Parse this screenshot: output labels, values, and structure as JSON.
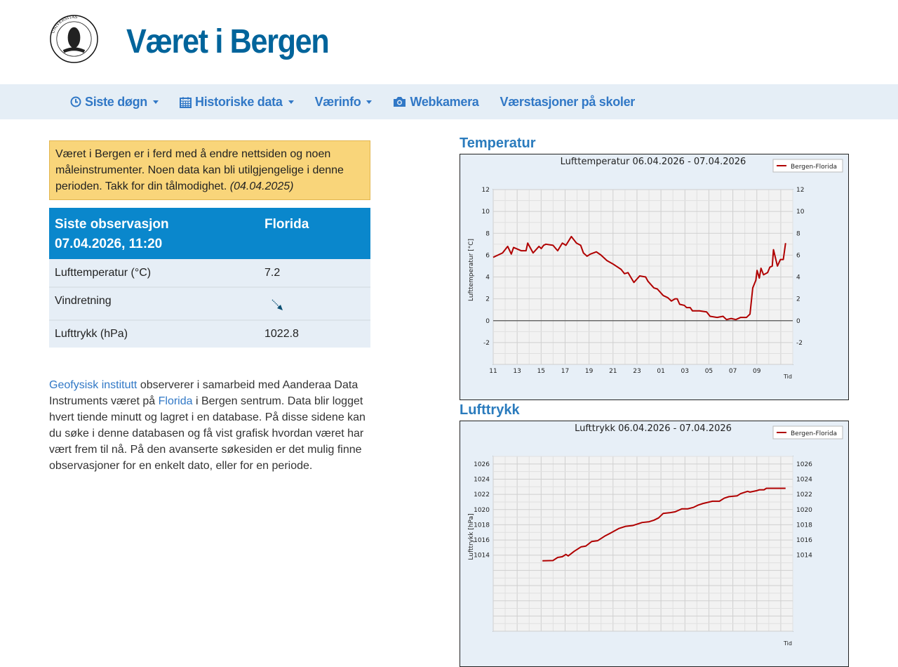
{
  "header": {
    "title": "Været i Bergen",
    "logo_text": "UNIVERSITAS BERGENSIS"
  },
  "nav": [
    {
      "label": "Siste døgn",
      "icon": "clock-icon",
      "dropdown": true
    },
    {
      "label": "Historiske data",
      "icon": "calendar-icon",
      "dropdown": true
    },
    {
      "label": "Værinfo",
      "dropdown": true
    },
    {
      "label": "Webkamera",
      "icon": "camera-icon"
    },
    {
      "label": "Værstasjoner på skoler"
    }
  ],
  "notice": {
    "text": "Været i Bergen er i ferd med å endre nettsiden og noen måleinstrumenter. Noen data kan bli utilgjengelige i denne perioden. Takk for din tålmodighet.",
    "date": "(04.04.2025)"
  },
  "observation": {
    "header_line1": "Siste observasjon",
    "header_line2": "07.04.2026, 11:20",
    "station": "Florida",
    "rows": [
      {
        "label": "Lufttemperatur (°C)",
        "value": "7.2"
      },
      {
        "label": "Vindretning",
        "value_icon": "wind-arrow-southeast-icon"
      },
      {
        "label": "Lufttrykk (hPa)",
        "value": "1022.8"
      }
    ]
  },
  "intro": {
    "link1": "Geofysisk institutt",
    "t1": " observerer i samarbeid med Aanderaa Data Instruments været på ",
    "link2": "Florida",
    "t2": " i Bergen sentrum. Data blir logget hvert tiende minutt og lagret i en database. På disse sidene kan du søke i denne databasen og få vist grafisk hvordan været har vært frem til nå. På den avanserte søkesiden er det mulig finne observasjoner for en enkelt dato, eller for en periode."
  },
  "sections": {
    "temperature": "Temperatur",
    "pressure": "Lufttrykk"
  },
  "colors": {
    "series": "#b00000",
    "accent": "#0a87cc",
    "title": "#00649b"
  },
  "chart_data": [
    {
      "type": "line",
      "title": "Lufttemperatur 06.04.2026 - 07.04.2026",
      "xlabel": "Tid",
      "ylabel": "Lufttemperatur [°C]",
      "legend": "Bergen-Florida",
      "legend_position": "top-right",
      "grid": true,
      "x_unit": "hours since 06.04 11:00",
      "xlim": [
        0,
        25
      ],
      "ylim": [
        -4,
        12
      ],
      "yticks": [
        -2,
        0,
        2,
        4,
        6,
        8,
        10,
        12
      ],
      "xticks": [
        {
          "x": 0,
          "label": "11"
        },
        {
          "x": 2,
          "label": "13"
        },
        {
          "x": 4,
          "label": "15"
        },
        {
          "x": 6,
          "label": "17"
        },
        {
          "x": 8,
          "label": "19"
        },
        {
          "x": 10,
          "label": "21"
        },
        {
          "x": 12,
          "label": "23"
        },
        {
          "x": 14,
          "label": "01"
        },
        {
          "x": 16,
          "label": "03"
        },
        {
          "x": 18,
          "label": "05"
        },
        {
          "x": 20,
          "label": "07"
        },
        {
          "x": 22,
          "label": "09"
        }
      ],
      "series": [
        {
          "name": "Bergen-Florida",
          "points": [
            [
              0,
              5.8
            ],
            [
              0.78,
              6.2
            ],
            [
              1.21,
              6.8
            ],
            [
              1.51,
              6.1
            ],
            [
              1.7,
              6.7
            ],
            [
              2.35,
              6.4
            ],
            [
              2.74,
              6.4
            ],
            [
              2.88,
              7.1
            ],
            [
              3.33,
              6.2
            ],
            [
              3.82,
              6.8
            ],
            [
              4.01,
              6.6
            ],
            [
              4.21,
              6.9
            ],
            [
              4.4,
              7.0
            ],
            [
              4.99,
              6.9
            ],
            [
              5.38,
              6.4
            ],
            [
              5.77,
              7.1
            ],
            [
              6.07,
              6.9
            ],
            [
              6.52,
              7.7
            ],
            [
              6.95,
              7.1
            ],
            [
              7.3,
              6.9
            ],
            [
              7.53,
              6.2
            ],
            [
              7.83,
              5.9
            ],
            [
              8.12,
              6.1
            ],
            [
              8.61,
              6.3
            ],
            [
              9.0,
              6.0
            ],
            [
              9.49,
              5.5
            ],
            [
              9.98,
              5.2
            ],
            [
              10.67,
              4.7
            ],
            [
              10.96,
              4.3
            ],
            [
              11.25,
              4.4
            ],
            [
              11.74,
              3.5
            ],
            [
              12.23,
              4.1
            ],
            [
              12.72,
              4.0
            ],
            [
              12.92,
              3.6
            ],
            [
              13.41,
              3.0
            ],
            [
              13.7,
              2.9
            ],
            [
              14.19,
              2.3
            ],
            [
              14.58,
              2.1
            ],
            [
              14.87,
              1.8
            ],
            [
              15.17,
              2.0
            ],
            [
              15.36,
              2.0
            ],
            [
              15.56,
              1.5
            ],
            [
              15.95,
              1.4
            ],
            [
              16.14,
              1.2
            ],
            [
              16.44,
              1.2
            ],
            [
              16.63,
              0.9
            ],
            [
              17.22,
              0.9
            ],
            [
              17.81,
              0.8
            ],
            [
              18.1,
              0.4
            ],
            [
              18.69,
              0.3
            ],
            [
              19.18,
              0.4
            ],
            [
              19.47,
              0.1
            ],
            [
              19.86,
              0.2
            ],
            [
              20.25,
              0.1
            ],
            [
              20.65,
              0.3
            ],
            [
              20.94,
              0.3
            ],
            [
              21.14,
              0.3
            ],
            [
              21.43,
              0.6
            ],
            [
              21.66,
              3.0
            ],
            [
              21.92,
              3.7
            ],
            [
              22.02,
              4.6
            ],
            [
              22.21,
              3.9
            ],
            [
              22.35,
              4.8
            ],
            [
              22.56,
              4.2
            ],
            [
              22.9,
              4.4
            ],
            [
              23.09,
              4.9
            ],
            [
              23.29,
              5.0
            ],
            [
              23.39,
              6.5
            ],
            [
              23.72,
              5.0
            ],
            [
              23.97,
              5.6
            ],
            [
              24.21,
              5.6
            ],
            [
              24.4,
              7.1
            ]
          ]
        }
      ]
    },
    {
      "type": "line",
      "title": "Lufttrykk 06.04.2026 - 07.04.2026",
      "xlabel": "Tid",
      "ylabel": "Lufttrykk [hPa]",
      "legend": "Bergen-Florida",
      "legend_position": "top-right",
      "grid": true,
      "x_unit": "hours since 06.04 11:00",
      "xlim": [
        0,
        25
      ],
      "ylim": [
        1004,
        1027
      ],
      "yticks": [
        1014,
        1016,
        1018,
        1020,
        1022,
        1024,
        1026
      ],
      "xticks": [],
      "series": [
        {
          "name": "Bergen-Florida",
          "points": [
            [
              4.11,
              1013.26
            ],
            [
              4.99,
              1013.3
            ],
            [
              5.38,
              1013.7
            ],
            [
              5.77,
              1013.8
            ],
            [
              6.07,
              1014.1
            ],
            [
              6.26,
              1013.9
            ],
            [
              6.75,
              1014.5
            ],
            [
              7.34,
              1015.1
            ],
            [
              7.73,
              1015.2
            ],
            [
              8.22,
              1015.8
            ],
            [
              8.71,
              1015.9
            ],
            [
              9.3,
              1016.5
            ],
            [
              9.78,
              1016.9
            ],
            [
              10.47,
              1017.5
            ],
            [
              11.06,
              1017.8
            ],
            [
              11.64,
              1017.9
            ],
            [
              12.43,
              1018.3
            ],
            [
              13.01,
              1018.4
            ],
            [
              13.41,
              1018.6
            ],
            [
              13.8,
              1018.9
            ],
            [
              14.19,
              1019.5
            ],
            [
              14.78,
              1019.6
            ],
            [
              15.17,
              1019.7
            ],
            [
              15.46,
              1019.9
            ],
            [
              15.75,
              1020.1
            ],
            [
              16.24,
              1020.1
            ],
            [
              16.73,
              1020.3
            ],
            [
              17.12,
              1020.6
            ],
            [
              17.51,
              1020.8
            ],
            [
              17.91,
              1020.95
            ],
            [
              18.3,
              1021.1
            ],
            [
              18.88,
              1021.1
            ],
            [
              19.28,
              1021.5
            ],
            [
              19.67,
              1021.7
            ],
            [
              20.35,
              1021.8
            ],
            [
              20.65,
              1022.1
            ],
            [
              21.23,
              1022.4
            ],
            [
              21.43,
              1022.3
            ],
            [
              22.02,
              1022.5
            ],
            [
              22.21,
              1022.6
            ],
            [
              22.6,
              1022.6
            ],
            [
              22.8,
              1022.8
            ],
            [
              24.4,
              1022.8
            ]
          ]
        }
      ]
    }
  ]
}
